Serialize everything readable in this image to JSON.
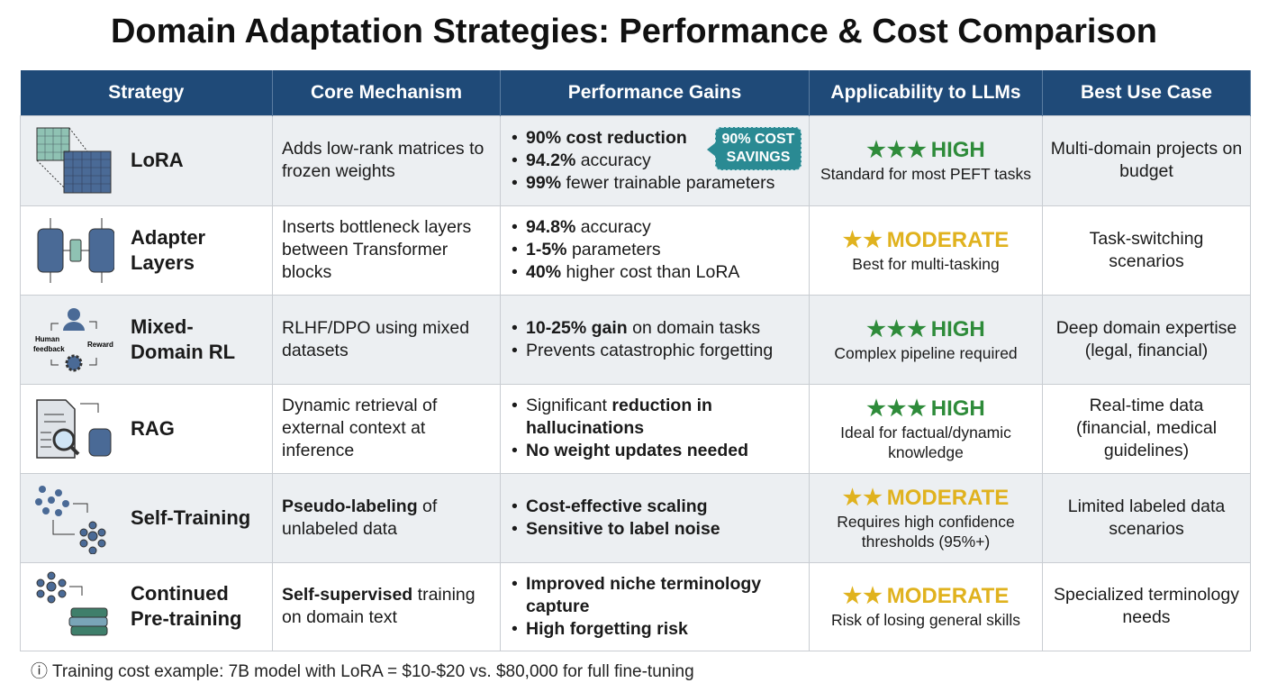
{
  "title": "Domain Adaptation Strategies: Performance & Cost Comparison",
  "headers": [
    "Strategy",
    "Core Mechanism",
    "Performance Gains",
    "Applicability to LLMs",
    "Best Use Case"
  ],
  "colors": {
    "header": "#1f4a78",
    "high": "#2e8b3a",
    "moderate": "#e0b21e",
    "badge": "#2a8a93"
  },
  "rows": [
    {
      "icon": "lora-matrix-icon",
      "name": "LoRA",
      "mechanism": [
        {
          "t": "Adds low-rank matrices to frozen weights",
          "b": false
        }
      ],
      "gains": [
        [
          {
            "t": "90% cost reduction",
            "b": true
          }
        ],
        [
          {
            "t": "94.2%",
            "b": true
          },
          {
            "t": " accuracy",
            "b": false
          }
        ],
        [
          {
            "t": "99%",
            "b": true
          },
          {
            "t": " fewer trainable parameters",
            "b": false
          }
        ]
      ],
      "badge": "90% COST SAVINGS",
      "stars": 3,
      "level": "HIGH",
      "note": "Standard for most PEFT tasks",
      "use": "Multi-domain projects on budget"
    },
    {
      "icon": "adapter-layers-icon",
      "name": "Adapter Layers",
      "mechanism": [
        {
          "t": "Inserts bottleneck layers between Transformer blocks",
          "b": false
        }
      ],
      "gains": [
        [
          {
            "t": "94.8%",
            "b": true
          },
          {
            "t": " accuracy",
            "b": false
          }
        ],
        [
          {
            "t": "1-5%",
            "b": true
          },
          {
            "t": " parameters",
            "b": false
          }
        ],
        [
          {
            "t": "40%",
            "b": true
          },
          {
            "t": " higher cost than LoRA",
            "b": false
          }
        ]
      ],
      "stars": 2,
      "level": "MODERATE",
      "note": "Best for multi-tasking",
      "use": "Task-switching scenarios"
    },
    {
      "icon": "rl-feedback-loop-icon",
      "icon_labels": [
        "Human feedback",
        "Reward"
      ],
      "name": "Mixed-Domain RL",
      "mechanism": [
        {
          "t": "RLHF/DPO using mixed datasets",
          "b": false
        }
      ],
      "gains": [
        [
          {
            "t": "10-25% gain",
            "b": true
          },
          {
            "t": " on domain tasks",
            "b": false
          }
        ],
        [
          {
            "t": "Prevents catastrophic forgetting",
            "b": false
          }
        ]
      ],
      "stars": 3,
      "level": "HIGH",
      "note": "Complex pipeline required",
      "use": "Deep domain expertise (legal, financial)"
    },
    {
      "icon": "rag-document-search-icon",
      "name": "RAG",
      "mechanism": [
        {
          "t": "Dynamic retrieval of external context at inference",
          "b": false
        }
      ],
      "gains": [
        [
          {
            "t": "Significant ",
            "b": false
          },
          {
            "t": "reduction in hallucinations",
            "b": true
          }
        ],
        [
          {
            "t": "No weight updates needed",
            "b": true
          }
        ]
      ],
      "stars": 3,
      "level": "HIGH",
      "note": "Ideal for factual/dynamic knowledge",
      "use": "Real-time data (financial, medical guidelines)"
    },
    {
      "icon": "self-training-network-icon",
      "name": "Self-Training",
      "mechanism": [
        {
          "t": "Pseudo-labeling",
          "b": true
        },
        {
          "t": " of unlabeled data",
          "b": false
        }
      ],
      "gains": [
        [
          {
            "t": "Cost-effective scaling",
            "b": true
          }
        ],
        [
          {
            "t": "Sensitive to label noise",
            "b": true
          }
        ]
      ],
      "stars": 2,
      "level": "MODERATE",
      "note": "Requires high confidence thresholds (95%+)",
      "use": "Limited labeled data scenarios"
    },
    {
      "icon": "network-books-icon",
      "name": "Continued Pre-training",
      "mechanism": [
        {
          "t": "Self-supervised",
          "b": true
        },
        {
          "t": " training on domain text",
          "b": false
        }
      ],
      "gains": [
        [
          {
            "t": "Improved niche terminology capture",
            "b": true
          }
        ],
        [
          {
            "t": "High forgetting risk",
            "b": true
          }
        ]
      ],
      "stars": 2,
      "level": "MODERATE",
      "note": "Risk of losing general skills",
      "use": "Specialized terminology needs"
    }
  ],
  "footer": {
    "icon": "info-icon",
    "text": "Training cost example: 7B model with LoRA = $10-$20 vs. $80,000 for full fine-tuning"
  }
}
